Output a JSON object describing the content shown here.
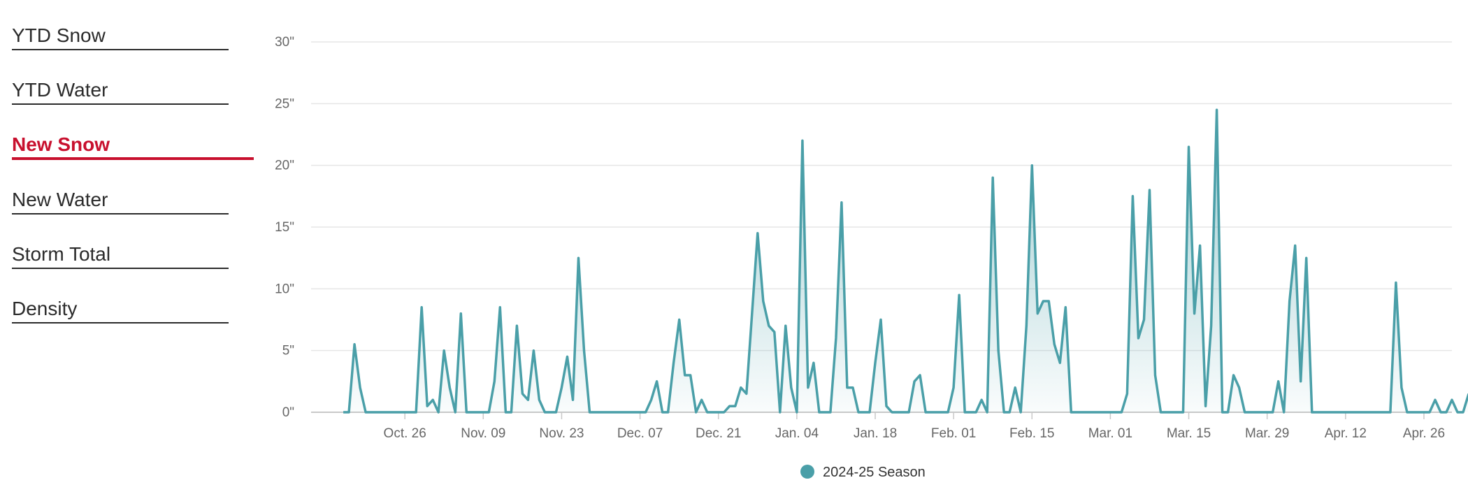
{
  "sidebar": {
    "items": [
      {
        "label": "YTD Snow",
        "active": false
      },
      {
        "label": "YTD Water",
        "active": false
      },
      {
        "label": "New Snow",
        "active": true
      },
      {
        "label": "New Water",
        "active": false
      },
      {
        "label": "Storm Total",
        "active": false
      },
      {
        "label": "Density",
        "active": false
      }
    ]
  },
  "colors": {
    "series": "#4a9fa8",
    "active_menu": "#c8102e",
    "grid": "#e6e6e6",
    "text": "#2b2b2b"
  },
  "chart_data": {
    "type": "area",
    "title": "",
    "xlabel": "",
    "ylabel": "",
    "ylim": [
      0,
      30
    ],
    "yticks": [
      0,
      5,
      10,
      15,
      20,
      25,
      30
    ],
    "ytick_labels": [
      "0\"",
      "5\"",
      "10\"",
      "15\"",
      "20\"",
      "25\"",
      "30\""
    ],
    "xlim": [
      -18,
      187
    ],
    "xticks": [
      {
        "day": 0,
        "label": "Oct. 26"
      },
      {
        "day": 14,
        "label": "Nov. 09"
      },
      {
        "day": 28,
        "label": "Nov. 23"
      },
      {
        "day": 42,
        "label": "Dec. 07"
      },
      {
        "day": 56,
        "label": "Dec. 21"
      },
      {
        "day": 70,
        "label": "Jan. 04"
      },
      {
        "day": 84,
        "label": "Jan. 18"
      },
      {
        "day": 98,
        "label": "Feb. 01"
      },
      {
        "day": 112,
        "label": "Feb. 15"
      },
      {
        "day": 126,
        "label": "Mar. 01"
      },
      {
        "day": 140,
        "label": "Mar. 15"
      },
      {
        "day": 154,
        "label": "Mar. 29"
      },
      {
        "day": 168,
        "label": "Apr. 12"
      },
      {
        "day": 182,
        "label": "Apr. 26"
      }
    ],
    "legend": [
      "2024-25 Season"
    ],
    "series": [
      {
        "name": "2024-25 Season",
        "x_unit": "days since Oct. 26",
        "points": [
          [
            -11,
            0
          ],
          [
            -10,
            0
          ],
          [
            -9,
            5.5
          ],
          [
            -8,
            2
          ],
          [
            -7,
            0
          ],
          [
            -6,
            0
          ],
          [
            -5,
            0
          ],
          [
            -4,
            0
          ],
          [
            -3,
            0
          ],
          [
            -2,
            0
          ],
          [
            -1,
            0
          ],
          [
            0,
            0
          ],
          [
            1,
            0
          ],
          [
            2,
            0
          ],
          [
            3,
            8.5
          ],
          [
            4,
            0.5
          ],
          [
            5,
            1
          ],
          [
            6,
            0
          ],
          [
            7,
            5
          ],
          [
            8,
            2
          ],
          [
            9,
            0
          ],
          [
            10,
            8
          ],
          [
            11,
            0
          ],
          [
            12,
            0
          ],
          [
            13,
            0
          ],
          [
            14,
            0
          ],
          [
            15,
            0
          ],
          [
            16,
            2.5
          ],
          [
            17,
            8.5
          ],
          [
            18,
            0
          ],
          [
            19,
            0
          ],
          [
            20,
            7
          ],
          [
            21,
            1.5
          ],
          [
            22,
            1
          ],
          [
            23,
            5
          ],
          [
            24,
            1
          ],
          [
            25,
            0
          ],
          [
            26,
            0
          ],
          [
            27,
            0
          ],
          [
            28,
            2
          ],
          [
            29,
            4.5
          ],
          [
            30,
            1
          ],
          [
            31,
            12.5
          ],
          [
            32,
            5
          ],
          [
            33,
            0
          ],
          [
            34,
            0
          ],
          [
            35,
            0
          ],
          [
            36,
            0
          ],
          [
            37,
            0
          ],
          [
            38,
            0
          ],
          [
            39,
            0
          ],
          [
            40,
            0
          ],
          [
            41,
            0
          ],
          [
            42,
            0
          ],
          [
            43,
            0
          ],
          [
            44,
            1
          ],
          [
            45,
            2.5
          ],
          [
            46,
            0
          ],
          [
            47,
            0
          ],
          [
            48,
            4
          ],
          [
            49,
            7.5
          ],
          [
            50,
            3
          ],
          [
            51,
            3
          ],
          [
            52,
            0
          ],
          [
            53,
            1
          ],
          [
            54,
            0
          ],
          [
            55,
            0
          ],
          [
            56,
            0
          ],
          [
            57,
            0
          ],
          [
            58,
            0.5
          ],
          [
            59,
            0.5
          ],
          [
            60,
            2
          ],
          [
            61,
            1.5
          ],
          [
            62,
            8
          ],
          [
            63,
            14.5
          ],
          [
            64,
            9
          ],
          [
            65,
            7
          ],
          [
            66,
            6.5
          ],
          [
            67,
            0
          ],
          [
            68,
            7
          ],
          [
            69,
            2
          ],
          [
            70,
            0
          ],
          [
            71,
            22
          ],
          [
            72,
            2
          ],
          [
            73,
            4
          ],
          [
            74,
            0
          ],
          [
            75,
            0
          ],
          [
            76,
            0
          ],
          [
            77,
            6
          ],
          [
            78,
            17
          ],
          [
            79,
            2
          ],
          [
            80,
            2
          ],
          [
            81,
            0
          ],
          [
            82,
            0
          ],
          [
            83,
            0
          ],
          [
            84,
            4
          ],
          [
            85,
            7.5
          ],
          [
            86,
            0.5
          ],
          [
            87,
            0
          ],
          [
            88,
            0
          ],
          [
            89,
            0
          ],
          [
            90,
            0
          ],
          [
            91,
            2.5
          ],
          [
            92,
            3
          ],
          [
            93,
            0
          ],
          [
            94,
            0
          ],
          [
            95,
            0
          ],
          [
            96,
            0
          ],
          [
            97,
            0
          ],
          [
            98,
            2
          ],
          [
            99,
            9.5
          ],
          [
            100,
            0
          ],
          [
            101,
            0
          ],
          [
            102,
            0
          ],
          [
            103,
            1
          ],
          [
            104,
            0
          ],
          [
            105,
            19
          ],
          [
            106,
            5
          ],
          [
            107,
            0
          ],
          [
            108,
            0
          ],
          [
            109,
            2
          ],
          [
            110,
            0
          ],
          [
            111,
            7
          ],
          [
            112,
            20
          ],
          [
            113,
            8
          ],
          [
            114,
            9
          ],
          [
            115,
            9
          ],
          [
            116,
            5.5
          ],
          [
            117,
            4
          ],
          [
            118,
            8.5
          ],
          [
            119,
            0
          ],
          [
            120,
            0
          ],
          [
            121,
            0
          ],
          [
            122,
            0
          ],
          [
            123,
            0
          ],
          [
            124,
            0
          ],
          [
            125,
            0
          ],
          [
            126,
            0
          ],
          [
            127,
            0
          ],
          [
            128,
            0
          ],
          [
            129,
            1.5
          ],
          [
            130,
            17.5
          ],
          [
            131,
            6
          ],
          [
            132,
            7.5
          ],
          [
            133,
            18
          ],
          [
            134,
            3
          ],
          [
            135,
            0
          ],
          [
            136,
            0
          ],
          [
            137,
            0
          ],
          [
            138,
            0
          ],
          [
            139,
            0
          ],
          [
            140,
            21.5
          ],
          [
            141,
            8
          ],
          [
            142,
            13.5
          ],
          [
            143,
            0.5
          ],
          [
            144,
            7
          ],
          [
            145,
            24.5
          ],
          [
            146,
            0
          ],
          [
            147,
            0
          ],
          [
            148,
            3
          ],
          [
            149,
            2
          ],
          [
            150,
            0
          ],
          [
            151,
            0
          ],
          [
            152,
            0
          ],
          [
            153,
            0
          ],
          [
            154,
            0
          ],
          [
            155,
            0
          ],
          [
            156,
            2.5
          ],
          [
            157,
            0
          ],
          [
            158,
            9
          ],
          [
            159,
            13.5
          ],
          [
            160,
            2.5
          ],
          [
            161,
            12.5
          ],
          [
            162,
            0
          ],
          [
            163,
            0
          ],
          [
            164,
            0
          ],
          [
            165,
            0
          ],
          [
            166,
            0
          ],
          [
            167,
            0
          ],
          [
            168,
            0
          ],
          [
            169,
            0
          ],
          [
            170,
            0
          ],
          [
            171,
            0
          ],
          [
            172,
            0
          ],
          [
            173,
            0
          ],
          [
            174,
            0
          ],
          [
            175,
            0
          ],
          [
            176,
            0
          ],
          [
            177,
            10.5
          ],
          [
            178,
            2
          ],
          [
            179,
            0
          ],
          [
            180,
            0
          ],
          [
            181,
            0
          ],
          [
            182,
            0
          ],
          [
            183,
            0
          ],
          [
            184,
            1
          ],
          [
            185,
            0
          ],
          [
            186,
            0
          ],
          [
            187,
            1
          ],
          [
            188,
            0
          ],
          [
            189,
            0
          ],
          [
            190,
            1.5
          ]
        ]
      }
    ]
  }
}
